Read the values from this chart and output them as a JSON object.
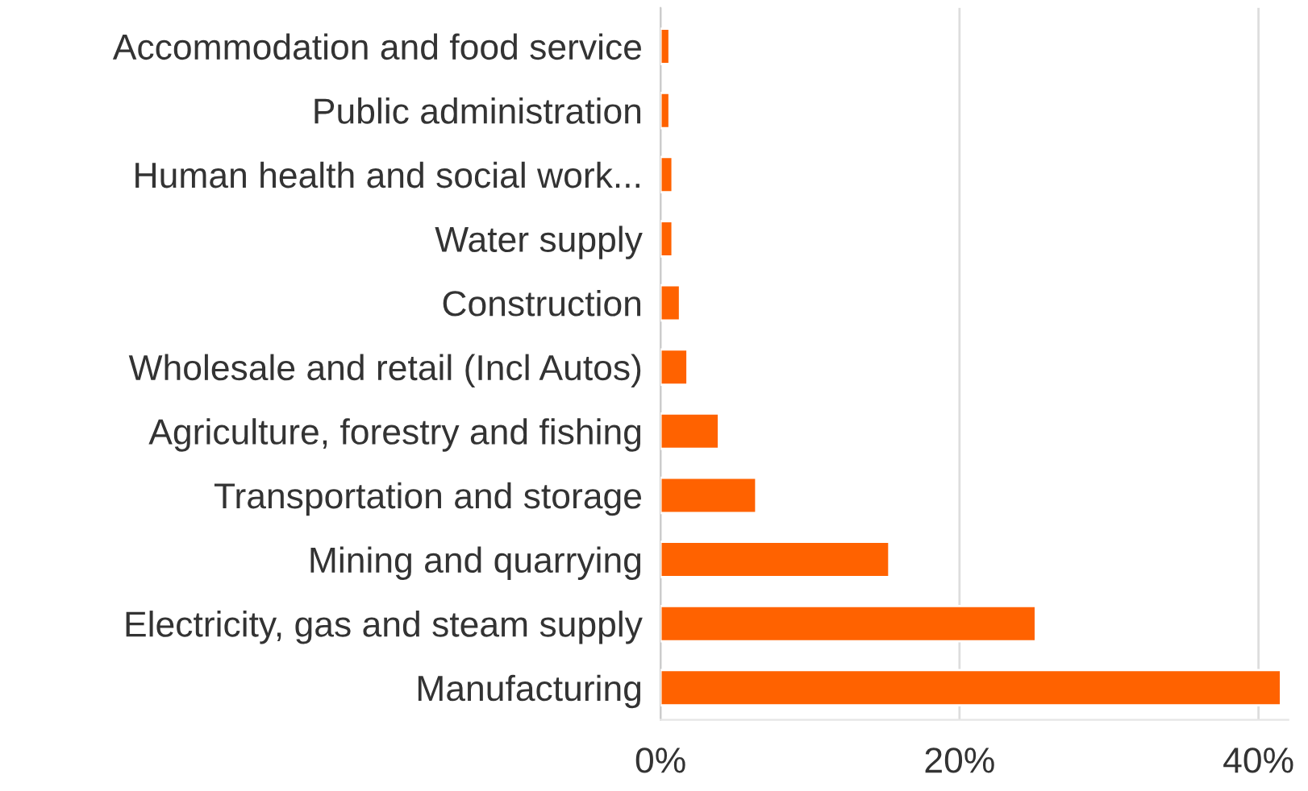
{
  "chart_data": {
    "type": "bar",
    "orientation": "horizontal",
    "categories": [
      "Accommodation and food service",
      "Public administration",
      "Human health and social work...",
      "Water supply",
      "Construction",
      "Wholesale and retail (Incl Autos)",
      "Agriculture, forestry and fishing",
      "Transportation and storage",
      "Mining and quarrying",
      "Electricity, gas and steam supply",
      "Manufacturing"
    ],
    "values": [
      0.6,
      0.6,
      0.8,
      0.8,
      1.3,
      1.8,
      3.9,
      6.4,
      15.3,
      25.1,
      41.5
    ],
    "color": "#ff6200",
    "xlim": [
      0,
      42
    ],
    "xticks": [
      {
        "value": 0,
        "label": "0%"
      },
      {
        "value": 20,
        "label": "20%"
      },
      {
        "value": 40,
        "label": "40%"
      }
    ],
    "grid": "x"
  }
}
